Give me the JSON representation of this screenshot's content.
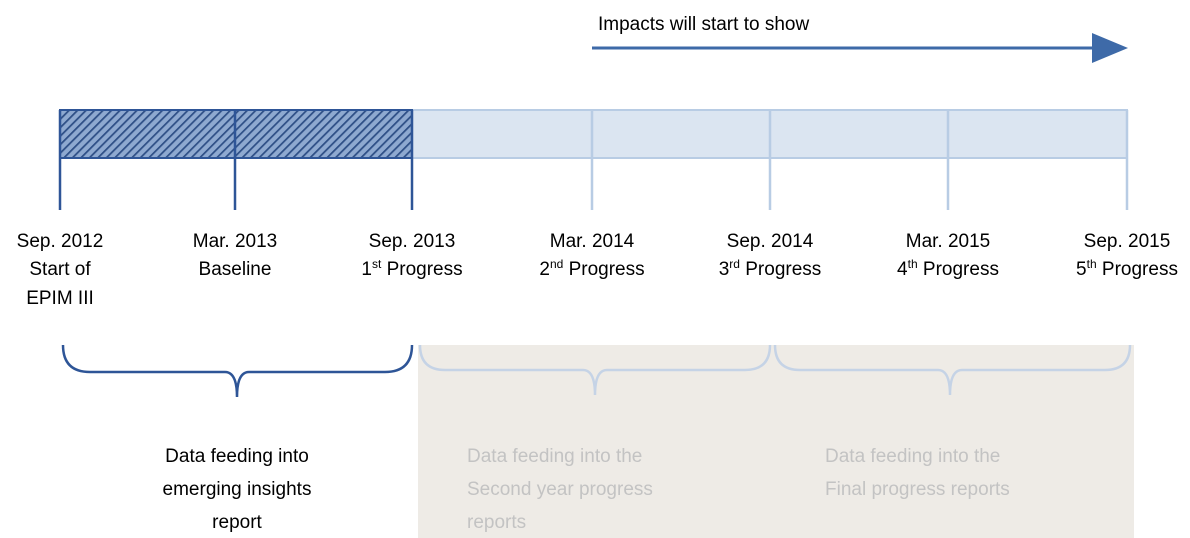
{
  "arrow": {
    "label": "Impacts will start to show"
  },
  "milestones": [
    {
      "date": "Sep. 2012",
      "lines": [
        "Start of",
        "EPIM III"
      ]
    },
    {
      "date": "Mar. 2013",
      "lines": [
        "Baseline"
      ]
    },
    {
      "date": "Sep. 2013",
      "ordinal": "1",
      "suffix": "st",
      "label": "Progress"
    },
    {
      "date": "Mar. 2014",
      "ordinal": "2",
      "suffix": "nd",
      "label": "Progress"
    },
    {
      "date": "Sep. 2014",
      "ordinal": "3",
      "suffix": "rd",
      "label": "Progress"
    },
    {
      "date": "Mar. 2015",
      "ordinal": "4",
      "suffix": "th",
      "label": "Progress"
    },
    {
      "date": "Sep. 2015",
      "ordinal": "5",
      "suffix": "th",
      "label": "Progress"
    }
  ],
  "groups": [
    {
      "lines": [
        "Data feeding into",
        "emerging insights",
        "report"
      ]
    },
    {
      "lines": [
        "Data feeding into the",
        "Second year progress",
        "reports"
      ]
    },
    {
      "lines": [
        "Data feeding into the",
        "Final progress reports"
      ]
    }
  ]
}
